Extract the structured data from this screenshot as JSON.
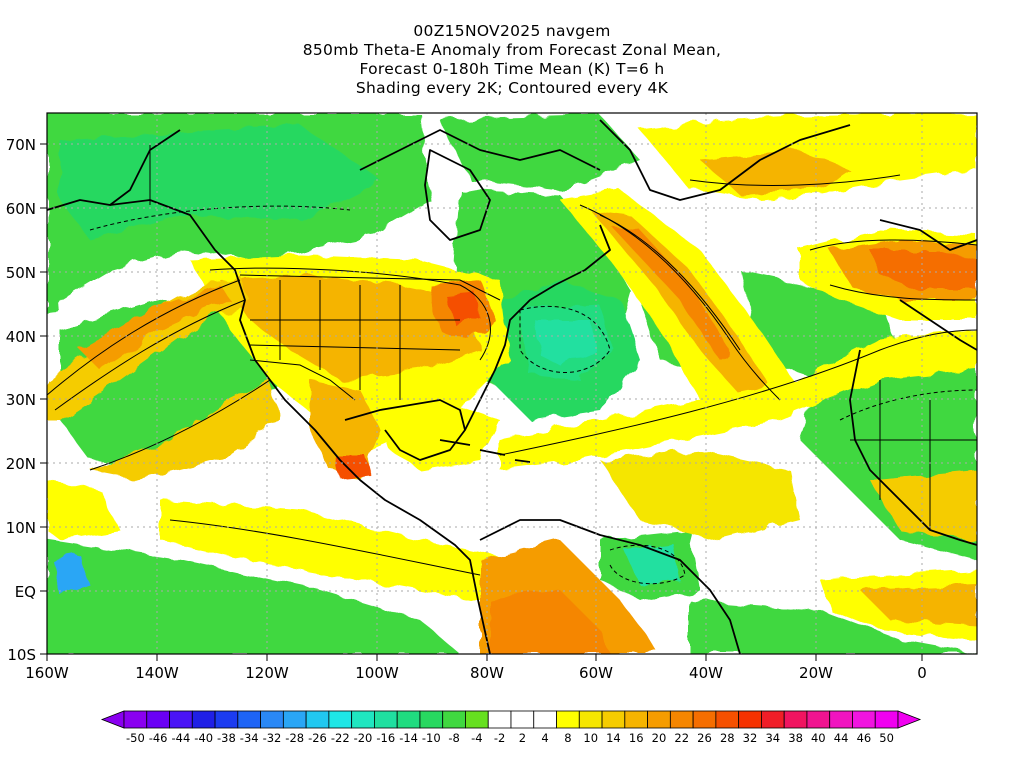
{
  "title": {
    "line1": "00Z15NOV2025 navgem",
    "line2": "850mb Theta-E Anomaly from Forecast Zonal Mean,",
    "line3": "Forecast 0-180h Time Mean (K) T=6 h",
    "line4": "Shading every 2K; Contoured every 4K"
  },
  "lat_labels": [
    "70N",
    "60N",
    "50N",
    "40N",
    "30N",
    "20N",
    "10N",
    "EQ",
    "10S"
  ],
  "lon_labels": [
    "160W",
    "140W",
    "120W",
    "100W",
    "80W",
    "60W",
    "40W",
    "20W",
    "0"
  ],
  "colorbar": {
    "labels": [
      "-50",
      "-46",
      "-44",
      "-40",
      "-38",
      "-34",
      "-32",
      "-28",
      "-26",
      "-22",
      "-20",
      "-16",
      "-14",
      "-10",
      "-8",
      "-4",
      "-2",
      "2",
      "4",
      "8",
      "10",
      "14",
      "16",
      "20",
      "22",
      "26",
      "28",
      "32",
      "34",
      "38",
      "40",
      "44",
      "46",
      "50"
    ],
    "colors": [
      "#8a00f0",
      "#6a00f5",
      "#4a14f5",
      "#2020e6",
      "#1c3cf0",
      "#1e64f5",
      "#2a88f5",
      "#2aa6f5",
      "#21c8f0",
      "#1ee6e6",
      "#20e6c0",
      "#20e0a0",
      "#20dc80",
      "#28d860",
      "#40d840",
      "#66e020",
      "#ffffff",
      "#ffffff",
      "#ffffff",
      "#ffff00",
      "#f5e600",
      "#f5cc00",
      "#f5b400",
      "#f59c00",
      "#f58600",
      "#f56e00",
      "#f55000",
      "#f53200",
      "#f01e28",
      "#f01460",
      "#f01490",
      "#f014c0",
      "#f014e0",
      "#f000f0"
    ]
  },
  "colors": {
    "positive_warm": "#f5b400",
    "negative_cool": "#40d840",
    "land_outline": "#000000"
  }
}
